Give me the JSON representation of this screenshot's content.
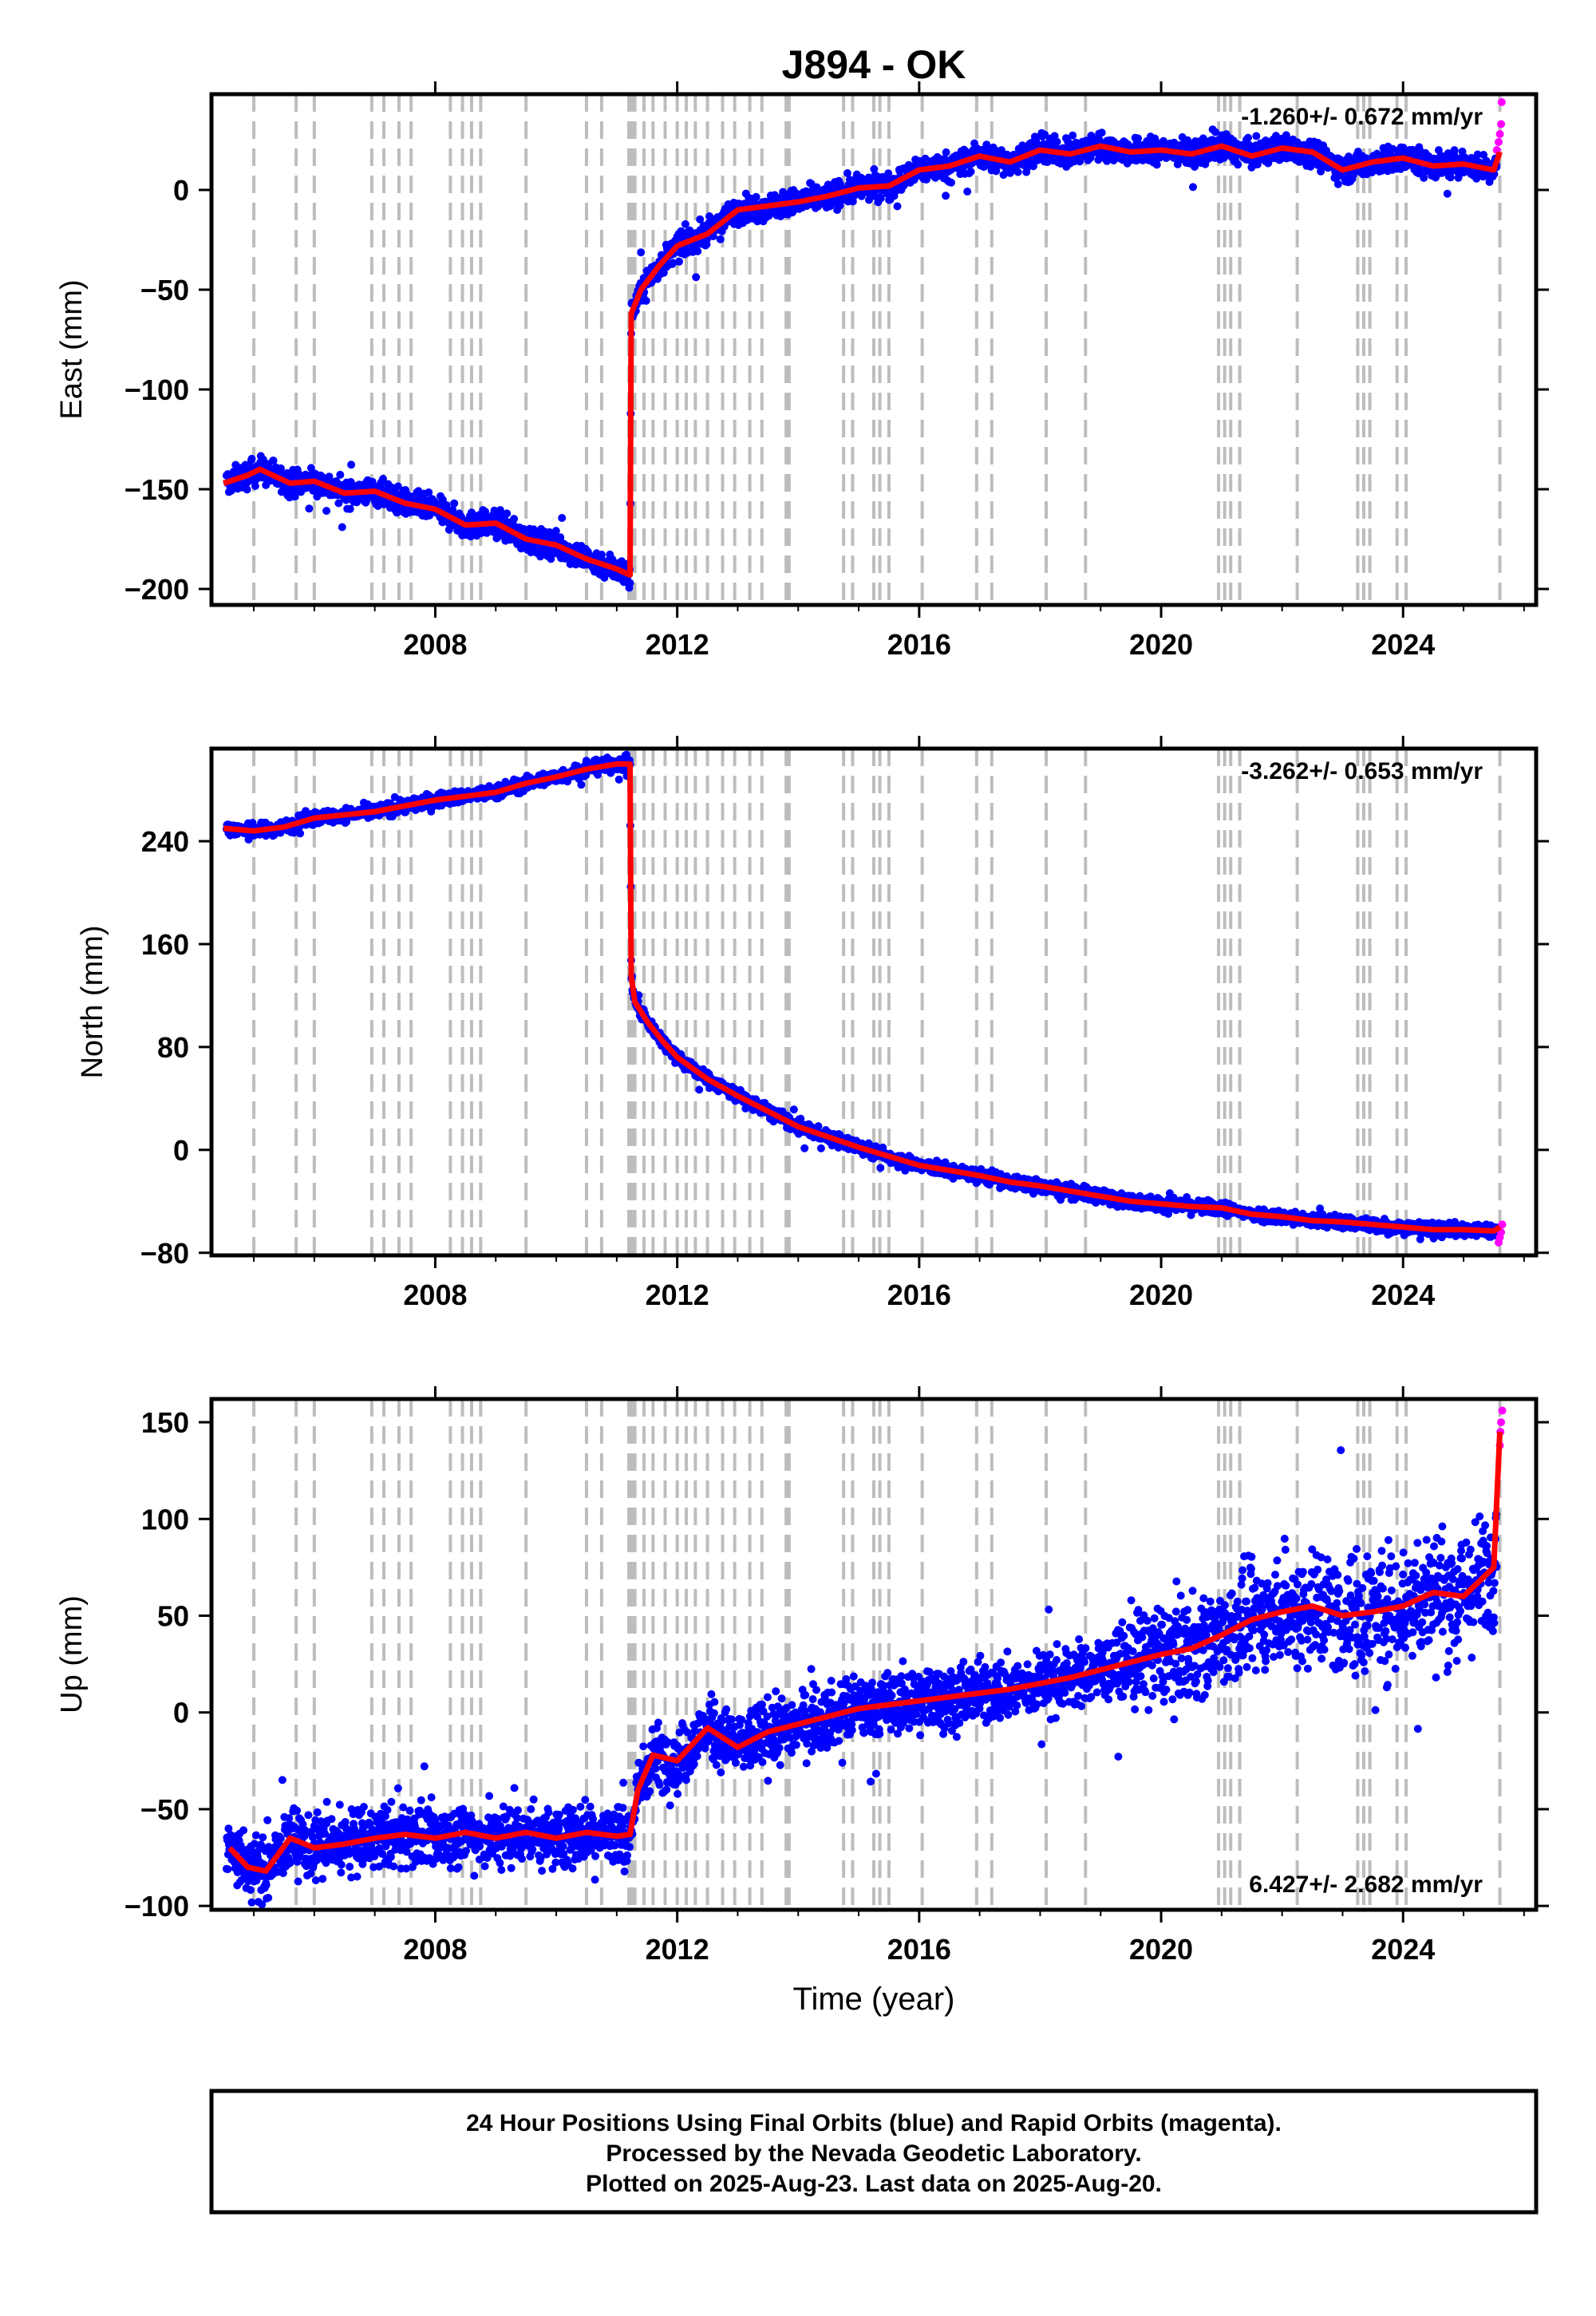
{
  "title": "J894 - OK",
  "x_axis_label": "Time (year)",
  "footer": [
    "24 Hour Positions Using Final Orbits (blue) and Rapid Orbits (magenta).",
    "Processed by the Nevada Geodetic Laboratory.",
    "Plotted on 2025-Aug-23. Last data on 2025-Aug-20."
  ],
  "colors": {
    "final": "#0000ff",
    "rapid": "#ff00ff",
    "model": "#ff0000",
    "events": "#bdbdbd"
  },
  "event_lines": [
    2005.0,
    2005.7,
    2006.0,
    2006.95,
    2007.15,
    2007.4,
    2007.6,
    2008.25,
    2008.45,
    2008.6,
    2008.75,
    2009.5,
    2010.5,
    2010.75,
    2011.2,
    2011.25,
    2011.3,
    2011.45,
    2011.6,
    2011.8,
    2012.0,
    2012.15,
    2012.3,
    2012.5,
    2012.75,
    2012.95,
    2013.2,
    2013.4,
    2013.8,
    2013.85,
    2014.75,
    2014.9,
    2015.25,
    2015.35,
    2015.5,
    2016.05,
    2016.95,
    2017.2,
    2018.1,
    2018.75,
    2020.95,
    2021.05,
    2021.15,
    2021.3,
    2022.25,
    2023.25,
    2023.35,
    2023.45,
    2023.9,
    2024.05,
    2025.6
  ],
  "chart_data": [
    {
      "type": "scatter",
      "name": "East",
      "ylabel": "East (mm)",
      "rate_text": "-1.260+/- 0.672 mm/yr",
      "xlim": [
        2004.3,
        2026.2
      ],
      "ylim": [
        -208,
        48
      ],
      "yticks": [
        -200,
        -150,
        -100,
        -50,
        0
      ],
      "xticks": [
        2008,
        2012,
        2016,
        2020,
        2024
      ],
      "noise": 3.2,
      "model": [
        [
          2004.5,
          -147
        ],
        [
          2004.9,
          -143
        ],
        [
          2005.1,
          -140
        ],
        [
          2005.6,
          -147
        ],
        [
          2006.0,
          -146
        ],
        [
          2006.5,
          -152
        ],
        [
          2007.0,
          -151
        ],
        [
          2007.5,
          -157
        ],
        [
          2008.0,
          -160
        ],
        [
          2008.5,
          -168
        ],
        [
          2009.0,
          -167
        ],
        [
          2009.5,
          -175
        ],
        [
          2010.0,
          -178
        ],
        [
          2010.5,
          -185
        ],
        [
          2011.0,
          -190
        ],
        [
          2011.22,
          -193
        ],
        [
          2011.24,
          -62
        ],
        [
          2011.4,
          -50
        ],
        [
          2011.7,
          -38
        ],
        [
          2012.0,
          -28
        ],
        [
          2012.5,
          -22
        ],
        [
          2013.0,
          -10
        ],
        [
          2013.5,
          -8
        ],
        [
          2014.0,
          -6
        ],
        [
          2014.5,
          -3
        ],
        [
          2015.0,
          1
        ],
        [
          2015.5,
          2
        ],
        [
          2016.0,
          10
        ],
        [
          2016.5,
          12
        ],
        [
          2017.0,
          17
        ],
        [
          2017.5,
          14
        ],
        [
          2018.0,
          20
        ],
        [
          2018.5,
          18
        ],
        [
          2019.0,
          22
        ],
        [
          2019.5,
          19
        ],
        [
          2020.0,
          20
        ],
        [
          2020.5,
          18
        ],
        [
          2021.0,
          22
        ],
        [
          2021.5,
          17
        ],
        [
          2022.0,
          21
        ],
        [
          2022.5,
          19
        ],
        [
          2023.0,
          10
        ],
        [
          2023.5,
          14
        ],
        [
          2024.0,
          16
        ],
        [
          2024.5,
          12
        ],
        [
          2025.0,
          13
        ],
        [
          2025.5,
          10
        ],
        [
          2025.6,
          19
        ]
      ],
      "rapid": [
        [
          2025.55,
          20
        ],
        [
          2025.58,
          24
        ],
        [
          2025.6,
          28
        ],
        [
          2025.62,
          33
        ],
        [
          2025.63,
          44
        ]
      ]
    },
    {
      "type": "scatter",
      "name": "North",
      "ylabel": "North (mm)",
      "rate_text": "-3.262+/- 0.653 mm/yr",
      "xlim": [
        2004.3,
        2026.2
      ],
      "ylim": [
        -82,
        312
      ],
      "yticks": [
        -80,
        0,
        80,
        160,
        240
      ],
      "xticks": [
        2008,
        2012,
        2016,
        2020,
        2024
      ],
      "noise": 2.6,
      "model": [
        [
          2004.5,
          250
        ],
        [
          2005.0,
          248
        ],
        [
          2005.5,
          251
        ],
        [
          2006.0,
          258
        ],
        [
          2007.0,
          263
        ],
        [
          2008.0,
          272
        ],
        [
          2009.0,
          278
        ],
        [
          2009.5,
          285
        ],
        [
          2010.0,
          290
        ],
        [
          2010.5,
          296
        ],
        [
          2011.0,
          300
        ],
        [
          2011.22,
          300
        ],
        [
          2011.24,
          135
        ],
        [
          2011.3,
          115
        ],
        [
          2011.5,
          100
        ],
        [
          2011.75,
          85
        ],
        [
          2012.0,
          72
        ],
        [
          2012.5,
          55
        ],
        [
          2013.0,
          42
        ],
        [
          2013.5,
          30
        ],
        [
          2014.0,
          18
        ],
        [
          2014.5,
          10
        ],
        [
          2015.0,
          2
        ],
        [
          2015.5,
          -5
        ],
        [
          2016.0,
          -12
        ],
        [
          2016.5,
          -16
        ],
        [
          2017.0,
          -20
        ],
        [
          2017.5,
          -25
        ],
        [
          2018.0,
          -28
        ],
        [
          2018.5,
          -32
        ],
        [
          2019.0,
          -36
        ],
        [
          2019.5,
          -40
        ],
        [
          2020.0,
          -42
        ],
        [
          2020.5,
          -44
        ],
        [
          2021.0,
          -45
        ],
        [
          2021.5,
          -50
        ],
        [
          2022.0,
          -52
        ],
        [
          2022.5,
          -55
        ],
        [
          2023.0,
          -56
        ],
        [
          2023.5,
          -58
        ],
        [
          2024.0,
          -60
        ],
        [
          2024.5,
          -62
        ],
        [
          2025.0,
          -62
        ],
        [
          2025.5,
          -63
        ],
        [
          2025.6,
          -60
        ]
      ],
      "rapid": [
        [
          2025.58,
          -72
        ],
        [
          2025.6,
          -68
        ],
        [
          2025.62,
          -64
        ],
        [
          2025.64,
          -58
        ]
      ]
    },
    {
      "type": "scatter",
      "name": "Up",
      "ylabel": "Up (mm)",
      "rate_text": "6.427+/- 2.682 mm/yr",
      "xlim": [
        2004.3,
        2026.2
      ],
      "ylim": [
        -102,
        162
      ],
      "yticks": [
        -100,
        -50,
        0,
        50,
        100,
        150
      ],
      "xticks": [
        2008,
        2012,
        2016,
        2020,
        2024
      ],
      "noise": 8,
      "model": [
        [
          2004.6,
          -70
        ],
        [
          2004.9,
          -80
        ],
        [
          2005.2,
          -82
        ],
        [
          2005.6,
          -65
        ],
        [
          2006.0,
          -70
        ],
        [
          2006.5,
          -68
        ],
        [
          2007.0,
          -65
        ],
        [
          2007.5,
          -63
        ],
        [
          2008.0,
          -65
        ],
        [
          2008.5,
          -62
        ],
        [
          2009.0,
          -65
        ],
        [
          2009.5,
          -62
        ],
        [
          2010.0,
          -65
        ],
        [
          2010.5,
          -62
        ],
        [
          2011.0,
          -64
        ],
        [
          2011.22,
          -63
        ],
        [
          2011.35,
          -40
        ],
        [
          2011.6,
          -22
        ],
        [
          2012.0,
          -25
        ],
        [
          2012.5,
          -8
        ],
        [
          2013.0,
          -18
        ],
        [
          2013.5,
          -10
        ],
        [
          2014.0,
          -6
        ],
        [
          2014.5,
          -2
        ],
        [
          2015.0,
          2
        ],
        [
          2015.5,
          4
        ],
        [
          2016.0,
          6
        ],
        [
          2016.5,
          8
        ],
        [
          2017.0,
          10
        ],
        [
          2017.5,
          12
        ],
        [
          2018.0,
          15
        ],
        [
          2018.5,
          18
        ],
        [
          2019.0,
          22
        ],
        [
          2019.5,
          26
        ],
        [
          2020.0,
          30
        ],
        [
          2020.5,
          33
        ],
        [
          2021.0,
          40
        ],
        [
          2021.5,
          48
        ],
        [
          2022.0,
          52
        ],
        [
          2022.5,
          55
        ],
        [
          2023.0,
          50
        ],
        [
          2023.5,
          52
        ],
        [
          2024.0,
          55
        ],
        [
          2024.5,
          62
        ],
        [
          2025.0,
          60
        ],
        [
          2025.5,
          75
        ],
        [
          2025.6,
          145
        ]
      ],
      "rapid": [
        [
          2025.6,
          138
        ],
        [
          2025.61,
          145
        ],
        [
          2025.62,
          150
        ],
        [
          2025.64,
          156
        ]
      ]
    }
  ]
}
